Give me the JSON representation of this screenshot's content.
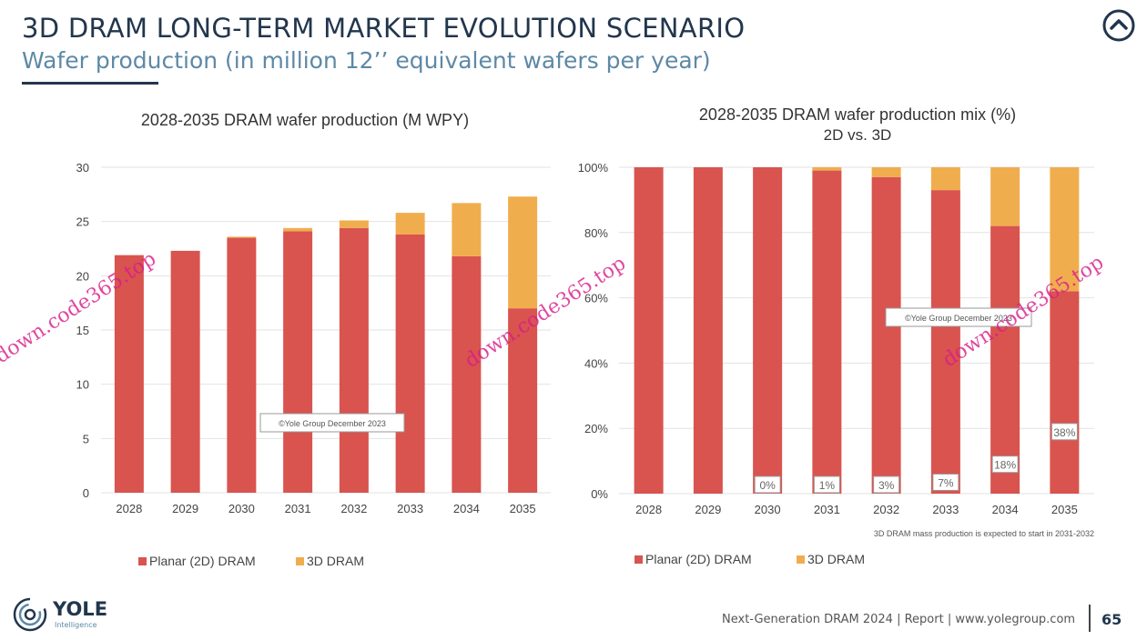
{
  "header": {
    "title": "3D DRAM LONG-TERM MARKET EVOLUTION SCENARIO",
    "subtitle": "Wafer production (in million 12’’ equivalent wafers per year)"
  },
  "watermark": "down.code365.top",
  "colors": {
    "planar": "#d9534f",
    "dram3d": "#f0ad4e",
    "navy": "#22364d",
    "accent": "#5d89a6"
  },
  "chart_data": [
    {
      "type": "bar",
      "stacked": true,
      "title": "2028-2035 DRAM wafer production (M WPY)",
      "categories": [
        "2028",
        "2029",
        "2030",
        "2031",
        "2032",
        "2033",
        "2034",
        "2035"
      ],
      "series": [
        {
          "name": "Planar (2D) DRAM",
          "values": [
            21.9,
            22.3,
            23.5,
            24.1,
            24.4,
            23.8,
            21.8,
            17.0
          ]
        },
        {
          "name": "3D DRAM",
          "values": [
            0,
            0,
            0.1,
            0.3,
            0.7,
            2.0,
            4.9,
            10.3
          ]
        }
      ],
      "ylim": [
        0,
        30
      ],
      "yticks": [
        "0",
        "5",
        "10",
        "15",
        "20",
        "25",
        "30"
      ],
      "annotation": "©Yole Group December 2023",
      "legend": [
        "Planar (2D) DRAM",
        "3D DRAM"
      ]
    },
    {
      "type": "bar",
      "stacked": true,
      "title": "2028-2035 DRAM wafer production mix (%)",
      "subtitle": "2D vs. 3D",
      "categories": [
        "2028",
        "2029",
        "2030",
        "2031",
        "2032",
        "2033",
        "2034",
        "2035"
      ],
      "series": [
        {
          "name": "Planar (2D) DRAM",
          "values": [
            100,
            100,
            100,
            99,
            97,
            93,
            82,
            62
          ]
        },
        {
          "name": "3D DRAM",
          "values": [
            0,
            0,
            0,
            1,
            3,
            7,
            18,
            38
          ]
        }
      ],
      "data_labels": [
        "",
        "",
        "0%",
        "1%",
        "3%",
        "7%",
        "18%",
        "38%"
      ],
      "ylim": [
        0,
        100
      ],
      "yticks": [
        "0%",
        "20%",
        "40%",
        "60%",
        "80%",
        "100%"
      ],
      "annotation": "©Yole Group December 2023",
      "footnote": "3D DRAM mass production is expected to start in 2031-2032",
      "legend": [
        "Planar (2D) DRAM",
        "3D DRAM"
      ]
    }
  ],
  "footer": {
    "logo_text": "YOLE",
    "logo_sub": "Intelligence",
    "text": "Next-Generation DRAM 2024 | Report | www.yolegroup.com",
    "page": "65"
  }
}
